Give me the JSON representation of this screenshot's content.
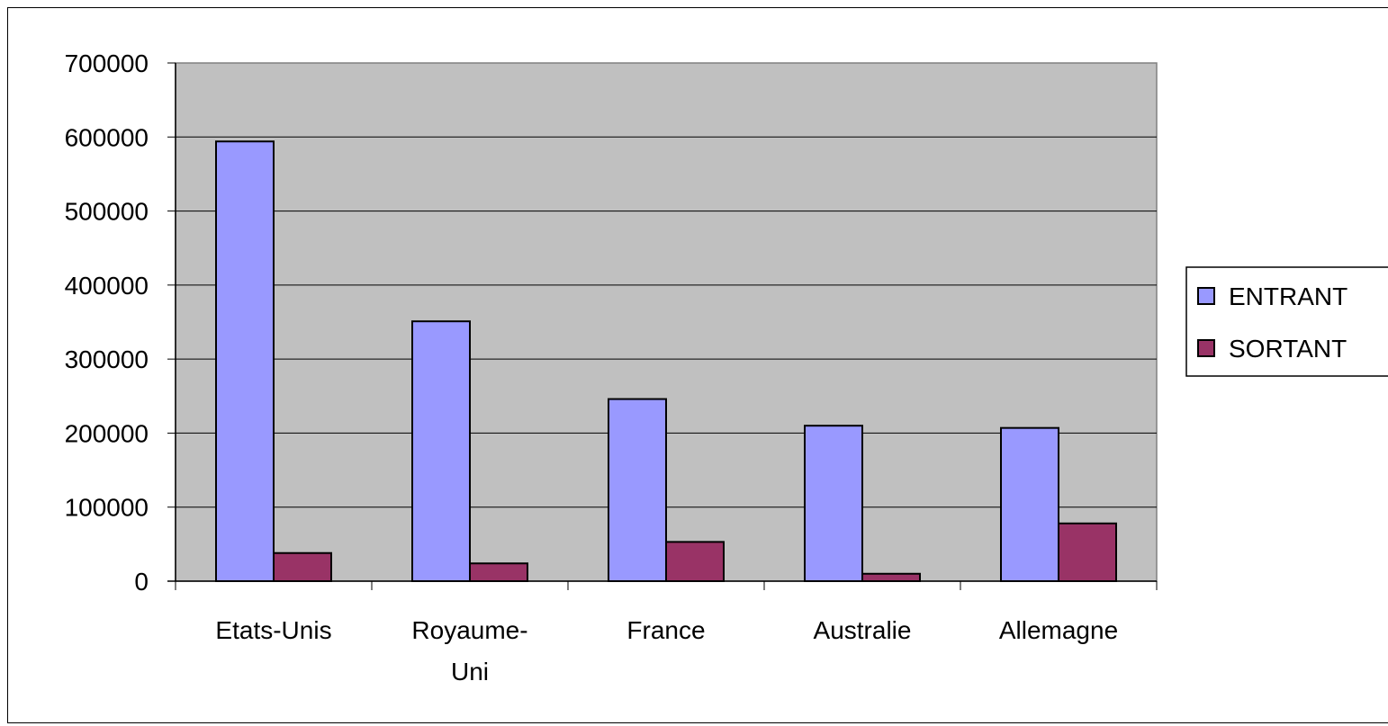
{
  "chart_data": {
    "type": "bar",
    "categories": [
      [
        "Etats-Unis"
      ],
      [
        "Royaume-",
        "Uni"
      ],
      [
        "France"
      ],
      [
        "Australie"
      ],
      [
        "Allemagne"
      ]
    ],
    "series": [
      {
        "name": "ENTRANT",
        "color": "#9999ff",
        "values": [
          594000,
          351000,
          246000,
          210000,
          207000
        ]
      },
      {
        "name": "SORTANT",
        "color": "#993366",
        "values": [
          38000,
          24000,
          53000,
          10000,
          78000
        ]
      }
    ],
    "ylim": [
      0,
      700000
    ],
    "yticks": [
      "0",
      "100000",
      "200000",
      "300000",
      "400000",
      "500000",
      "600000",
      "700000"
    ],
    "grid": true,
    "plot_background": "#c0c0c0",
    "legend_position": "right",
    "title": "",
    "xlabel": "",
    "ylabel": ""
  }
}
